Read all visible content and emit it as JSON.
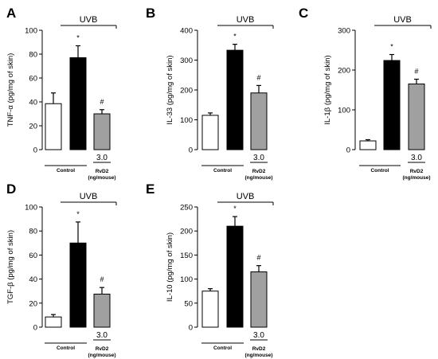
{
  "colors": {
    "control_fill": "#ffffff",
    "uvb_fill": "#000000",
    "rvd2_fill": "#a0a0a0",
    "axis": "#000000"
  },
  "chart_data": [
    {
      "panel": "A",
      "type": "bar",
      "ylabel": "TNF-α (pg/mg of skin)",
      "ylim": [
        0,
        100
      ],
      "yticks": [
        "0",
        "20",
        "40",
        "60",
        "80",
        "100"
      ],
      "uvb_label": "UVB",
      "control_label": "Control",
      "dose_label": "3.0",
      "treatment_label": "RvD2",
      "treatment_unit": "(ng/mouse)",
      "values": [
        38.5,
        77.0,
        30.0
      ],
      "errors": [
        9.0,
        10.0,
        3.5
      ],
      "marks": [
        "",
        "*",
        "#"
      ]
    },
    {
      "panel": "B",
      "type": "bar",
      "ylabel": "IL-33 (pg/mg of skin)",
      "ylim": [
        0,
        400
      ],
      "yticks": [
        "0",
        "100",
        "200",
        "300",
        "400"
      ],
      "uvb_label": "UVB",
      "control_label": "Control",
      "dose_label": "3.0",
      "treatment_label": "RvD2",
      "treatment_unit": "(ng/mouse)",
      "values": [
        115.0,
        333.0,
        190.0
      ],
      "errors": [
        8.0,
        20.0,
        25.0
      ],
      "marks": [
        "",
        "*",
        "#"
      ]
    },
    {
      "panel": "C",
      "type": "bar",
      "ylabel": "IL-1β (pg/mg of skin)",
      "ylim": [
        0,
        300
      ],
      "yticks": [
        "0",
        "100",
        "200",
        "300"
      ],
      "uvb_label": "UVB",
      "control_label": "Control",
      "dose_label": "3.0",
      "treatment_label": "RvD2",
      "treatment_unit": "(ng/mouse)",
      "values": [
        22.0,
        224.0,
        165.0
      ],
      "errors": [
        3.0,
        15.0,
        12.0
      ],
      "marks": [
        "",
        "*",
        "#"
      ]
    },
    {
      "panel": "D",
      "type": "bar",
      "ylabel": "TGF-β (pg/mg of skin)",
      "ylim": [
        0,
        100
      ],
      "yticks": [
        "0",
        "20",
        "40",
        "60",
        "80",
        "100"
      ],
      "uvb_label": "UVB",
      "control_label": "Control",
      "dose_label": "3.0",
      "treatment_label": "RvD2",
      "treatment_unit": "(ng/mouse)",
      "values": [
        8.5,
        70.0,
        27.5
      ],
      "errors": [
        2.0,
        17.5,
        5.5
      ],
      "marks": [
        "",
        "*",
        "#"
      ]
    },
    {
      "panel": "E",
      "type": "bar",
      "ylabel": "IL-10 (pg/mg of skin)",
      "ylim": [
        0,
        250
      ],
      "yticks": [
        "0",
        "50",
        "100",
        "150",
        "200",
        "250"
      ],
      "uvb_label": "UVB",
      "control_label": "Control",
      "dose_label": "3.0",
      "treatment_label": "RvD2",
      "treatment_unit": "(ng/mouse)",
      "values": [
        75.0,
        210.0,
        115.0
      ],
      "errors": [
        5.0,
        20.0,
        13.0
      ],
      "marks": [
        "",
        "*",
        "#"
      ]
    }
  ]
}
